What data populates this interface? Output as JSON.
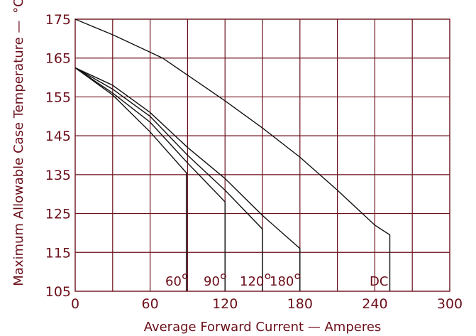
{
  "chart_data": {
    "type": "line",
    "xlabel": "Average Forward Current — Amperes",
    "ylabel": "Maximum Allowable Case Temperature —",
    "ylabel_unit": "°C",
    "xlim": [
      0,
      300
    ],
    "ylim": [
      105,
      175
    ],
    "x_ticks": [
      0,
      60,
      120,
      180,
      240,
      300
    ],
    "y_ticks": [
      105,
      115,
      125,
      135,
      145,
      155,
      165,
      175
    ],
    "grid": true,
    "series": [
      {
        "name": "60°",
        "points": [
          [
            0,
            162.5
          ],
          [
            30,
            155.5
          ],
          [
            60,
            146
          ],
          [
            89,
            135.5
          ]
        ],
        "drop_to": 105
      },
      {
        "name": "90°",
        "points": [
          [
            0,
            162.5
          ],
          [
            30,
            156
          ],
          [
            60,
            148.5
          ],
          [
            90,
            138
          ],
          [
            120,
            128
          ]
        ],
        "drop_to": 105
      },
      {
        "name": "120°",
        "points": [
          [
            0,
            162.5
          ],
          [
            30,
            157
          ],
          [
            60,
            150
          ],
          [
            90,
            140
          ],
          [
            120,
            131
          ],
          [
            150,
            121
          ]
        ],
        "drop_to": 105
      },
      {
        "name": "180°",
        "points": [
          [
            0,
            162.5
          ],
          [
            30,
            158
          ],
          [
            60,
            151
          ],
          [
            90,
            142
          ],
          [
            120,
            134
          ],
          [
            150,
            124.5
          ],
          [
            180,
            116
          ]
        ],
        "drop_to": 105
      },
      {
        "name": "DC",
        "points": [
          [
            0,
            175
          ],
          [
            30,
            171
          ],
          [
            60,
            166.5
          ],
          [
            70,
            165
          ],
          [
            120,
            154
          ],
          [
            150,
            147
          ],
          [
            180,
            139.5
          ],
          [
            210,
            131
          ],
          [
            240,
            122
          ],
          [
            252,
            119.5
          ]
        ],
        "drop_to": 105
      }
    ],
    "annotations": [
      {
        "text": "60",
        "deg": true
      },
      {
        "text": "90",
        "deg": true
      },
      {
        "text": "120",
        "deg": true
      },
      {
        "text": "180",
        "deg": true
      },
      {
        "text": "DC",
        "deg": false
      }
    ]
  }
}
